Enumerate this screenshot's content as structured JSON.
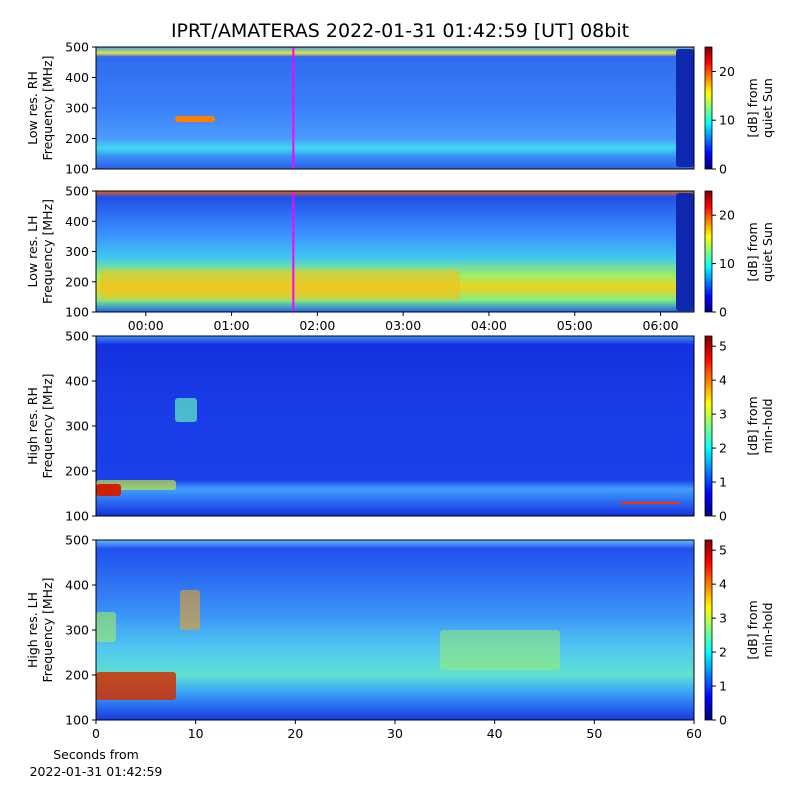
{
  "title": "IPRT/AMATERAS 2022-01-31 01:42:59 [UT]   08bit",
  "chart_data": [
    {
      "type": "spectrogram",
      "ylabel": [
        "Low res. RH",
        "Frequency [MHz]"
      ],
      "ylim": [
        100,
        500
      ],
      "yticks": [
        100,
        200,
        300,
        400,
        500
      ],
      "xlim": [
        -0.58,
        6.39
      ],
      "cursor": 1.72,
      "cursor_color": "#ff00ff",
      "colorbar": {
        "label": "[dB] from quiet Sun",
        "clim": [
          0,
          25
        ],
        "ticks": [
          0,
          10,
          20
        ]
      }
    },
    {
      "type": "spectrogram",
      "ylabel": [
        "Low res. LH",
        "Frequency [MHz]"
      ],
      "ylim": [
        100,
        500
      ],
      "yticks": [
        100,
        200,
        300,
        400,
        500
      ],
      "xlim": [
        -0.58,
        6.39
      ],
      "xticks": [
        {
          "value": 0,
          "label": "00:00"
        },
        {
          "value": 1,
          "label": "01:00"
        },
        {
          "value": 2,
          "label": "02:00"
        },
        {
          "value": 3,
          "label": "03:00"
        },
        {
          "value": 4,
          "label": "04:00"
        },
        {
          "value": 5,
          "label": "05:00"
        },
        {
          "value": 6,
          "label": "06:00"
        }
      ],
      "cursor": 1.72,
      "cursor_color": "#ff00ff",
      "colorbar": {
        "label": "[dB] from quiet Sun",
        "clim": [
          0,
          25
        ],
        "ticks": [
          0,
          10,
          20
        ]
      }
    },
    {
      "type": "spectrogram",
      "ylabel": [
        "High res. RH",
        "Frequency [MHz]"
      ],
      "ylim": [
        100,
        500
      ],
      "yticks": [
        100,
        200,
        300,
        400,
        500
      ],
      "xlim": [
        0,
        60
      ],
      "colorbar": {
        "label": "[dB] from min-hold",
        "clim": [
          0,
          5.3
        ],
        "ticks": [
          0,
          1,
          2,
          3,
          4,
          5
        ]
      }
    },
    {
      "type": "spectrogram",
      "ylabel": [
        "High res. LH",
        "Frequency [MHz]"
      ],
      "ylim": [
        100,
        500
      ],
      "yticks": [
        100,
        200,
        300,
        400,
        500
      ],
      "xlim": [
        0,
        60
      ],
      "xticks": [
        0,
        10,
        20,
        30,
        40,
        50,
        60
      ],
      "xlabel": [
        "Seconds from",
        "2022-01-31 01:42:59"
      ],
      "colorbar": {
        "label": "[dB] from min-hold",
        "clim": [
          0,
          5.3
        ],
        "ticks": [
          0,
          1,
          2,
          3,
          4,
          5
        ]
      }
    }
  ]
}
